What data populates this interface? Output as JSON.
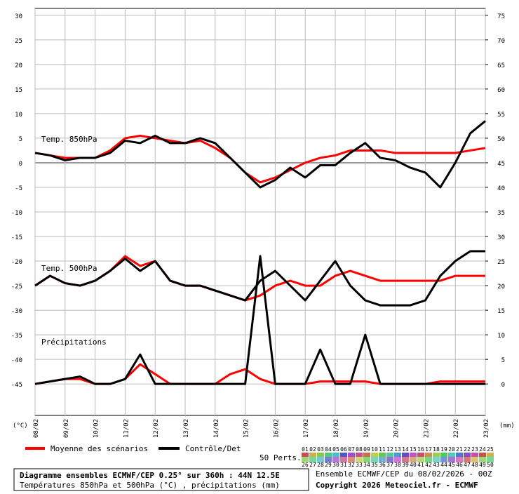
{
  "chart_data": {
    "type": "line",
    "panels": [
      "Temp. 850hPa",
      "Temp. 500hPa",
      "Précipitations"
    ],
    "x": [
      0,
      12,
      24,
      36,
      48,
      60,
      72,
      84,
      96,
      108,
      120,
      132,
      144,
      156,
      168,
      180,
      192,
      204,
      216,
      228,
      240,
      252,
      264,
      276,
      288,
      300,
      312,
      324,
      336,
      348,
      360
    ],
    "xlim": [
      0,
      360
    ],
    "xticks": [
      {
        "value": 0,
        "label": "08/02"
      },
      {
        "value": 24,
        "label": "09/02"
      },
      {
        "value": 48,
        "label": "10/02"
      },
      {
        "value": 72,
        "label": "11/02"
      },
      {
        "value": 96,
        "label": "12/02"
      },
      {
        "value": 120,
        "label": "13/02"
      },
      {
        "value": 144,
        "label": "14/02"
      },
      {
        "value": 168,
        "label": "15/02"
      },
      {
        "value": 192,
        "label": "16/02"
      },
      {
        "value": 216,
        "label": "17/02"
      },
      {
        "value": 240,
        "label": "18/02"
      },
      {
        "value": 264,
        "label": "19/02"
      },
      {
        "value": 288,
        "label": "20/02"
      },
      {
        "value": 312,
        "label": "21/02"
      },
      {
        "value": 336,
        "label": "22/02"
      },
      {
        "value": 360,
        "label": "23/02"
      }
    ],
    "ylim": [
      -51.4,
      31.4
    ],
    "yticks": [
      30,
      25,
      20,
      15,
      10,
      5,
      0,
      -5,
      -10,
      -15,
      -20,
      -25,
      -30,
      -35,
      -40,
      -45
    ],
    "y2lim": [
      -6.4,
      76.4
    ],
    "y2ticks": [
      75,
      70,
      65,
      60,
      55,
      50,
      45,
      40,
      35,
      30,
      25,
      20,
      15,
      10,
      5,
      0
    ],
    "ylabel": "(°C)",
    "y2label": "(mm)",
    "grid": true,
    "series": [
      {
        "name": "Moyenne des scénarios",
        "color": "#ff0000",
        "t850": [
          2,
          1.5,
          1,
          1,
          1,
          2.5,
          5,
          5.5,
          5,
          4.5,
          4,
          4.5,
          3,
          1,
          -2,
          -4,
          -3,
          -1.5,
          0,
          1,
          1.5,
          2.5,
          2.5,
          2.5,
          2,
          2,
          2,
          2,
          2,
          2.5,
          3
        ],
        "t500": [
          -25,
          -23,
          -24.5,
          -25,
          -24,
          -22,
          -19,
          -21,
          -20,
          -24,
          -25,
          -25,
          -26,
          -27,
          -28,
          -27,
          -25,
          -24,
          -25,
          -25,
          -23,
          -22,
          -23,
          -24,
          -24,
          -24,
          -24,
          -24,
          -23,
          -23,
          -23
        ],
        "precip": [
          0,
          0.5,
          1,
          1,
          0,
          0,
          1,
          4,
          2,
          0,
          0,
          0,
          0,
          2,
          3,
          1,
          0,
          0,
          0,
          0.5,
          0.5,
          0.5,
          0.5,
          0,
          0,
          0,
          0,
          0.5,
          0.5,
          0.5,
          0.5
        ]
      },
      {
        "name": "Contrôle/Det",
        "color": "#000000",
        "t850": [
          2,
          1.5,
          0.5,
          1,
          1,
          2,
          4.5,
          4,
          5.5,
          4,
          4,
          5,
          4,
          1,
          -2,
          -5,
          -3.5,
          -1,
          -3,
          -0.5,
          -0.5,
          2,
          4,
          1,
          0.5,
          -1,
          -2,
          -5,
          0,
          6,
          8.5
        ],
        "t500": [
          -25,
          -23,
          -24.5,
          -25,
          -24,
          -22,
          -19.5,
          -22,
          -20,
          -24,
          -25,
          -25,
          -26,
          -27,
          -28,
          -24,
          -22,
          -25,
          -28,
          -24,
          -20,
          -25,
          -28,
          -29,
          -29,
          -29,
          -28,
          -23,
          -20,
          -18,
          -18
        ],
        "precip": [
          0,
          0.5,
          1,
          1.5,
          0,
          0,
          1,
          6,
          0,
          0,
          0,
          0,
          0,
          0,
          0,
          26,
          0,
          0,
          0,
          7,
          0,
          0,
          10,
          0,
          0,
          0,
          0,
          0,
          0,
          0,
          0
        ]
      }
    ],
    "members_label": "50 Perts.",
    "members": [
      "01",
      "02",
      "03",
      "04",
      "05",
      "06",
      "07",
      "08",
      "09",
      "10",
      "11",
      "12",
      "13",
      "14",
      "15",
      "16",
      "17",
      "18",
      "19",
      "20",
      "21",
      "22",
      "23",
      "24",
      "25",
      "26",
      "27",
      "28",
      "29",
      "30",
      "31",
      "32",
      "33",
      "34",
      "35",
      "36",
      "37",
      "38",
      "39",
      "40",
      "41",
      "42",
      "43",
      "44",
      "45",
      "46",
      "47",
      "48",
      "49",
      "50"
    ],
    "footer": {
      "title": "Diagramme ensembles ECMWF/CEP 0.25° sur 360h : 44N 12.5E",
      "subtitle": "Températures 850hPa et 500hPa (°C) , précipitations (mm)",
      "run": "Ensemble ECMWF/CEP du 08/02/2026 - 00Z",
      "copyright": "Copyright 2026 Meteociel.fr - ECMWF"
    }
  }
}
